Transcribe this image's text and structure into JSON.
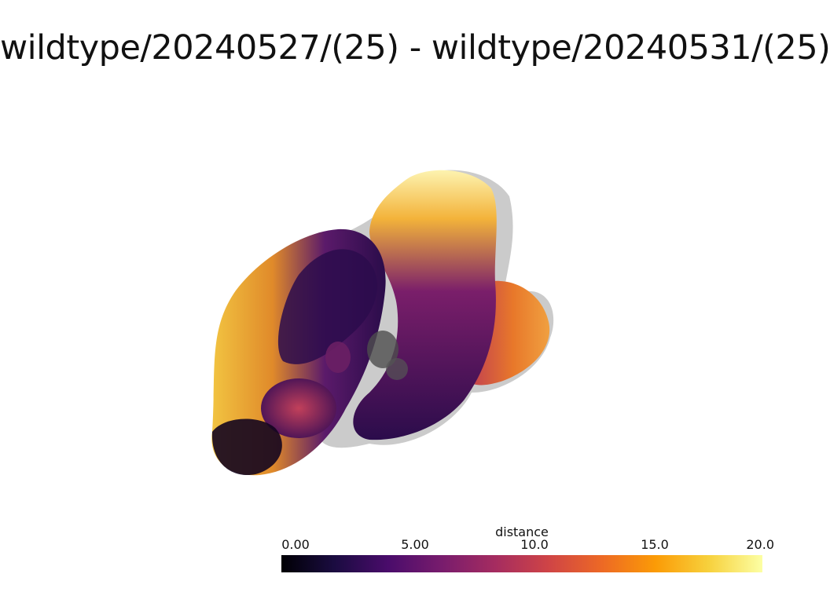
{
  "title": "wildtype/20240527/(25) - wildtype/20240531/(25)",
  "colorbar": {
    "label": "distance",
    "ticks": [
      "0.00",
      "5.00",
      "10.0",
      "15.0",
      "20.0"
    ],
    "range": [
      0,
      20
    ],
    "colormap": "inferno",
    "colors": [
      "#000004",
      "#1b0c41",
      "#4a0c6b",
      "#781c6d",
      "#a52c60",
      "#cf4446",
      "#ed6925",
      "#fb9b06",
      "#f7d13d",
      "#fcffa4"
    ]
  },
  "render": {
    "surface_colors": {
      "dark": "#1b0c41",
      "mid": "#781c6d",
      "warm": "#ed6925",
      "hot": "#f7d13d",
      "ghost": "#9a9a9a"
    }
  }
}
